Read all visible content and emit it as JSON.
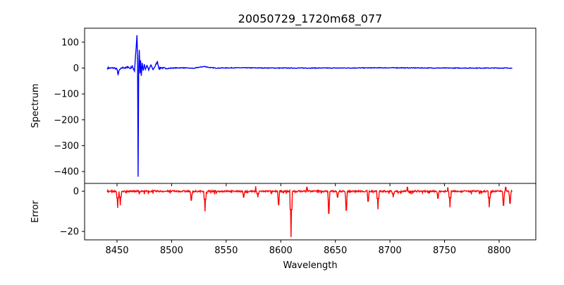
{
  "chart_data": [
    {
      "type": "line",
      "title": "20050729_1720m68_077",
      "xlabel": "",
      "ylabel": "Spectrum",
      "color": "#0000ff",
      "xlim": [
        8420.3,
        8833.6
      ],
      "ylim": [
        -446,
        154
      ],
      "xticks": [
        8450,
        8500,
        8550,
        8600,
        8650,
        8700,
        8750,
        8800
      ],
      "yticks": [
        100,
        0,
        -100,
        -200,
        -300,
        -400
      ],
      "x": [
        8441,
        8448,
        8450,
        8451,
        8452,
        8455,
        8458,
        8460,
        8462,
        8464,
        8465,
        8466,
        8467,
        8467.7,
        8468.3,
        8468.8,
        8469.3,
        8469.8,
        8470.4,
        8471,
        8471.6,
        8472.2,
        8473,
        8474,
        8475,
        8476,
        8477.5,
        8479,
        8481,
        8483,
        8485,
        8487,
        8488.5,
        8490,
        8495,
        8500,
        8510,
        8520,
        8525,
        8530,
        8535,
        8540,
        8560,
        8600,
        8650,
        8700,
        8750,
        8800,
        8812
      ],
      "y": [
        0,
        0,
        -5,
        -25,
        -8,
        2,
        0,
        5,
        -2,
        8,
        -5,
        -12,
        50,
        90,
        127,
        40,
        -420,
        -10,
        70,
        -20,
        30,
        -30,
        20,
        -10,
        15,
        -5,
        10,
        -8,
        12,
        -6,
        8,
        25,
        -4,
        2,
        -2,
        0,
        1,
        -1,
        3,
        6,
        2,
        0,
        1,
        0,
        0,
        1,
        0,
        0,
        0
      ]
    },
    {
      "type": "line",
      "title": "",
      "xlabel": "Wavelength",
      "ylabel": "Error",
      "color": "#ff0000",
      "xlim": [
        8420.3,
        8833.6
      ],
      "ylim": [
        -24.2,
        3.9
      ],
      "xticks": [
        8450,
        8500,
        8550,
        8600,
        8650,
        8700,
        8750,
        8800
      ],
      "yticks": [
        0,
        -20
      ],
      "x": [
        8450.6,
        8453,
        8518,
        8530.6,
        8566,
        8577,
        8579,
        8598,
        8609.4,
        8624,
        8644,
        8652,
        8660,
        8680,
        8689,
        8703,
        8716,
        8744,
        8753,
        8755,
        8791,
        8804,
        8806,
        8810
      ],
      "y": [
        -8.3,
        -7,
        -4.5,
        -10,
        -3,
        2.5,
        -3,
        -6.7,
        -22.8,
        2,
        -11,
        -3,
        -9.5,
        -5,
        -9,
        -3,
        2,
        -3.5,
        2,
        -8,
        -8,
        -7,
        2,
        -6
      ]
    }
  ]
}
